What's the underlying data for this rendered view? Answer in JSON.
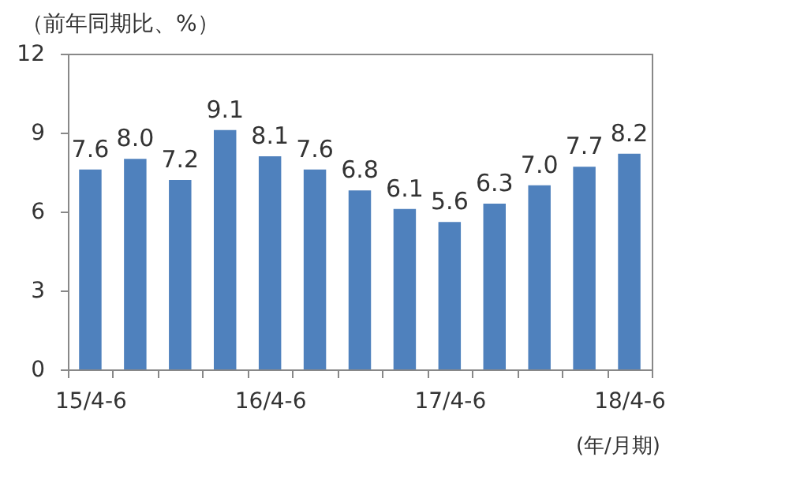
{
  "chart_data": {
    "type": "bar",
    "ylabel": "（前年同期比、%）",
    "xlabel": "(年/月期)",
    "categories": [
      "15/4-6",
      null,
      null,
      null,
      "16/4-6",
      null,
      null,
      null,
      "17/4-6",
      null,
      null,
      null,
      "18/4-6"
    ],
    "values": [
      7.6,
      8.0,
      7.2,
      9.1,
      8.1,
      7.6,
      6.8,
      6.1,
      5.6,
      6.3,
      7.0,
      7.7,
      8.2
    ],
    "value_labels": [
      "7.6",
      "8.0",
      "7.2",
      "9.1",
      "8.1",
      "7.6",
      "6.8",
      "6.1",
      "5.6",
      "6.3",
      "7.0",
      "7.7",
      "8.2"
    ],
    "color": "#4f81bd",
    "ylim": [
      0,
      12
    ],
    "yticks": [
      0,
      3,
      6,
      9,
      12
    ],
    "grid": false
  }
}
